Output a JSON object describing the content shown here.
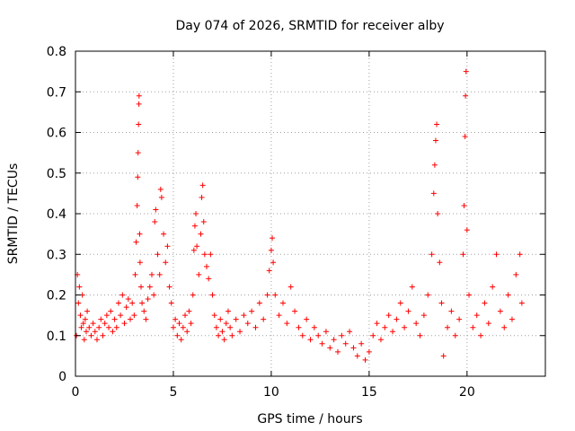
{
  "chart_data": {
    "type": "scatter",
    "title": "Day 074 of 2026, SRMTID for receiver alby",
    "xlabel": "GPS time / hours",
    "ylabel": "SRMTID / TECUs",
    "xlim": [
      0,
      24
    ],
    "ylim": [
      0,
      0.8
    ],
    "xticks": [
      "0",
      "5",
      "10",
      "15",
      "20"
    ],
    "xtick_values": [
      0,
      5,
      10,
      15,
      20
    ],
    "yticks": [
      "0",
      "0.1",
      "0.2",
      "0.3",
      "0.4",
      "0.5",
      "0.6",
      "0.7",
      "0.8"
    ],
    "ytick_values": [
      0,
      0.1,
      0.2,
      0.3,
      0.4,
      0.5,
      0.6,
      0.7,
      0.8
    ],
    "grid": true,
    "marker": "+",
    "series": [
      {
        "name": "SRMTID",
        "color": "#ff0000",
        "points": [
          [
            0.05,
            0.1
          ],
          [
            0.1,
            0.25
          ],
          [
            0.15,
            0.18
          ],
          [
            0.2,
            0.22
          ],
          [
            0.25,
            0.15
          ],
          [
            0.3,
            0.12
          ],
          [
            0.35,
            0.2
          ],
          [
            0.4,
            0.13
          ],
          [
            0.45,
            0.09
          ],
          [
            0.5,
            0.14
          ],
          [
            0.55,
            0.11
          ],
          [
            0.6,
            0.16
          ],
          [
            0.7,
            0.12
          ],
          [
            0.8,
            0.1
          ],
          [
            0.9,
            0.13
          ],
          [
            1.0,
            0.11
          ],
          [
            1.1,
            0.09
          ],
          [
            1.2,
            0.12
          ],
          [
            1.3,
            0.14
          ],
          [
            1.4,
            0.1
          ],
          [
            1.5,
            0.13
          ],
          [
            1.6,
            0.15
          ],
          [
            1.7,
            0.12
          ],
          [
            1.8,
            0.16
          ],
          [
            1.9,
            0.11
          ],
          [
            2.0,
            0.14
          ],
          [
            2.1,
            0.12
          ],
          [
            2.2,
            0.18
          ],
          [
            2.3,
            0.15
          ],
          [
            2.4,
            0.2
          ],
          [
            2.5,
            0.13
          ],
          [
            2.6,
            0.17
          ],
          [
            2.7,
            0.19
          ],
          [
            2.8,
            0.14
          ],
          [
            2.9,
            0.18
          ],
          [
            3.0,
            0.15
          ],
          [
            3.05,
            0.25
          ],
          [
            3.1,
            0.33
          ],
          [
            3.15,
            0.42
          ],
          [
            3.18,
            0.49
          ],
          [
            3.2,
            0.55
          ],
          [
            3.22,
            0.62
          ],
          [
            3.24,
            0.67
          ],
          [
            3.25,
            0.69
          ],
          [
            3.28,
            0.35
          ],
          [
            3.3,
            0.28
          ],
          [
            3.35,
            0.22
          ],
          [
            3.4,
            0.18
          ],
          [
            3.5,
            0.16
          ],
          [
            3.6,
            0.14
          ],
          [
            3.7,
            0.19
          ],
          [
            3.8,
            0.22
          ],
          [
            3.9,
            0.25
          ],
          [
            4.0,
            0.2
          ],
          [
            4.05,
            0.38
          ],
          [
            4.1,
            0.41
          ],
          [
            4.2,
            0.3
          ],
          [
            4.3,
            0.25
          ],
          [
            4.35,
            0.46
          ],
          [
            4.4,
            0.44
          ],
          [
            4.5,
            0.35
          ],
          [
            4.6,
            0.28
          ],
          [
            4.7,
            0.32
          ],
          [
            4.8,
            0.22
          ],
          [
            4.9,
            0.18
          ],
          [
            5.0,
            0.12
          ],
          [
            5.1,
            0.14
          ],
          [
            5.2,
            0.1
          ],
          [
            5.3,
            0.13
          ],
          [
            5.4,
            0.09
          ],
          [
            5.5,
            0.12
          ],
          [
            5.6,
            0.15
          ],
          [
            5.7,
            0.11
          ],
          [
            5.8,
            0.16
          ],
          [
            5.9,
            0.13
          ],
          [
            6.0,
            0.2
          ],
          [
            6.05,
            0.31
          ],
          [
            6.1,
            0.37
          ],
          [
            6.15,
            0.4
          ],
          [
            6.2,
            0.32
          ],
          [
            6.3,
            0.25
          ],
          [
            6.4,
            0.35
          ],
          [
            6.45,
            0.44
          ],
          [
            6.5,
            0.47
          ],
          [
            6.55,
            0.38
          ],
          [
            6.6,
            0.3
          ],
          [
            6.7,
            0.27
          ],
          [
            6.8,
            0.24
          ],
          [
            6.9,
            0.3
          ],
          [
            7.0,
            0.2
          ],
          [
            7.1,
            0.15
          ],
          [
            7.2,
            0.12
          ],
          [
            7.3,
            0.1
          ],
          [
            7.4,
            0.14
          ],
          [
            7.5,
            0.11
          ],
          [
            7.6,
            0.09
          ],
          [
            7.7,
            0.13
          ],
          [
            7.8,
            0.16
          ],
          [
            7.9,
            0.12
          ],
          [
            8.0,
            0.1
          ],
          [
            8.2,
            0.14
          ],
          [
            8.4,
            0.11
          ],
          [
            8.6,
            0.15
          ],
          [
            8.8,
            0.13
          ],
          [
            9.0,
            0.16
          ],
          [
            9.2,
            0.12
          ],
          [
            9.4,
            0.18
          ],
          [
            9.6,
            0.14
          ],
          [
            9.8,
            0.2
          ],
          [
            9.9,
            0.26
          ],
          [
            10.0,
            0.31
          ],
          [
            10.05,
            0.34
          ],
          [
            10.1,
            0.28
          ],
          [
            10.2,
            0.2
          ],
          [
            10.4,
            0.15
          ],
          [
            10.6,
            0.18
          ],
          [
            10.8,
            0.13
          ],
          [
            11.0,
            0.22
          ],
          [
            11.2,
            0.16
          ],
          [
            11.4,
            0.12
          ],
          [
            11.6,
            0.1
          ],
          [
            11.8,
            0.14
          ],
          [
            12.0,
            0.09
          ],
          [
            12.2,
            0.12
          ],
          [
            12.4,
            0.1
          ],
          [
            12.6,
            0.08
          ],
          [
            12.8,
            0.11
          ],
          [
            13.0,
            0.07
          ],
          [
            13.2,
            0.09
          ],
          [
            13.4,
            0.06
          ],
          [
            13.6,
            0.1
          ],
          [
            13.8,
            0.08
          ],
          [
            14.0,
            0.11
          ],
          [
            14.2,
            0.07
          ],
          [
            14.4,
            0.05
          ],
          [
            14.6,
            0.08
          ],
          [
            14.8,
            0.04
          ],
          [
            15.0,
            0.06
          ],
          [
            15.2,
            0.1
          ],
          [
            15.4,
            0.13
          ],
          [
            15.6,
            0.09
          ],
          [
            15.8,
            0.12
          ],
          [
            16.0,
            0.15
          ],
          [
            16.2,
            0.11
          ],
          [
            16.4,
            0.14
          ],
          [
            16.6,
            0.18
          ],
          [
            16.8,
            0.12
          ],
          [
            17.0,
            0.16
          ],
          [
            17.2,
            0.22
          ],
          [
            17.4,
            0.13
          ],
          [
            17.6,
            0.1
          ],
          [
            17.8,
            0.15
          ],
          [
            18.0,
            0.2
          ],
          [
            18.2,
            0.3
          ],
          [
            18.3,
            0.45
          ],
          [
            18.35,
            0.52
          ],
          [
            18.4,
            0.58
          ],
          [
            18.45,
            0.62
          ],
          [
            18.5,
            0.4
          ],
          [
            18.6,
            0.28
          ],
          [
            18.7,
            0.18
          ],
          [
            18.8,
            0.05
          ],
          [
            19.0,
            0.12
          ],
          [
            19.2,
            0.16
          ],
          [
            19.4,
            0.1
          ],
          [
            19.6,
            0.14
          ],
          [
            19.8,
            0.3
          ],
          [
            19.85,
            0.42
          ],
          [
            19.9,
            0.59
          ],
          [
            19.92,
            0.69
          ],
          [
            19.95,
            0.75
          ],
          [
            20.0,
            0.36
          ],
          [
            20.1,
            0.2
          ],
          [
            20.3,
            0.12
          ],
          [
            20.5,
            0.15
          ],
          [
            20.7,
            0.1
          ],
          [
            20.9,
            0.18
          ],
          [
            21.1,
            0.13
          ],
          [
            21.3,
            0.22
          ],
          [
            21.5,
            0.3
          ],
          [
            21.7,
            0.16
          ],
          [
            21.9,
            0.12
          ],
          [
            22.1,
            0.2
          ],
          [
            22.3,
            0.14
          ],
          [
            22.5,
            0.25
          ],
          [
            22.7,
            0.3
          ],
          [
            22.8,
            0.18
          ]
        ]
      }
    ]
  }
}
